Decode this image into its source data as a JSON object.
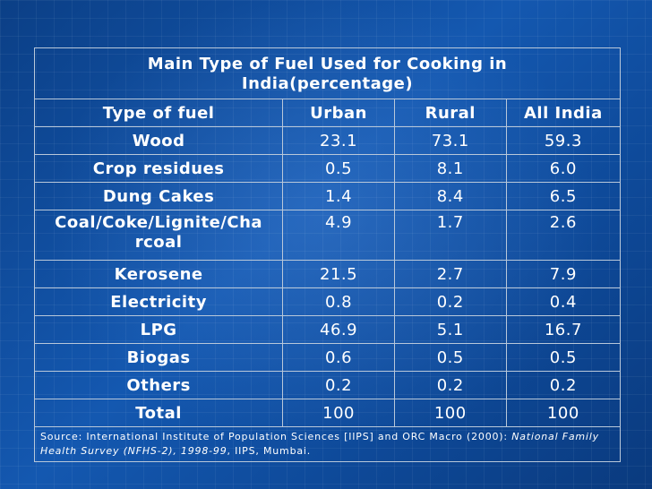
{
  "table": {
    "title_line1": "Main Type of Fuel Used for Cooking in",
    "title_line2": "India(percentage)",
    "headers": [
      "Type of fuel",
      "Urban",
      "Rural",
      "All India"
    ],
    "rows": [
      {
        "fuel": "Wood",
        "urban": "23.1",
        "rural": "73.1",
        "all": "59.3"
      },
      {
        "fuel": "Crop residues",
        "urban": "0.5",
        "rural": "8.1",
        "all": "6.0"
      },
      {
        "fuel": "Dung Cakes",
        "urban": "1.4",
        "rural": "8.4",
        "all": "6.5"
      },
      {
        "fuel_line1": "Coal/Coke/Lignite/Cha",
        "fuel_line2": "rcoal",
        "urban": "4.9",
        "rural": "1.7",
        "all": "2.6"
      },
      {
        "fuel": "Kerosene",
        "urban": "21.5",
        "rural": "2.7",
        "all": "7.9"
      },
      {
        "fuel": "Electricity",
        "urban": "0.8",
        "rural": "0.2",
        "all": "0.4"
      },
      {
        "fuel": "LPG",
        "urban": "46.9",
        "rural": "5.1",
        "all": "16.7"
      },
      {
        "fuel": "Biogas",
        "urban": "0.6",
        "rural": "0.5",
        "all": "0.5"
      },
      {
        "fuel": "Others",
        "urban": "0.2",
        "rural": "0.2",
        "all": "0.2"
      },
      {
        "fuel": "Total",
        "urban": "100",
        "rural": "100",
        "all": "100"
      }
    ],
    "source": {
      "prefix": "Source: International Institute of Population Sciences [IIPS] and ORC Macro (2000): ",
      "italic": "National Family Health Survey (NFHS-2), 1998-99",
      "suffix": ", IIPS, Mumbai."
    }
  },
  "colors": {
    "background": "#1458b0",
    "text": "#ffffff",
    "border": "#b9c8da"
  }
}
